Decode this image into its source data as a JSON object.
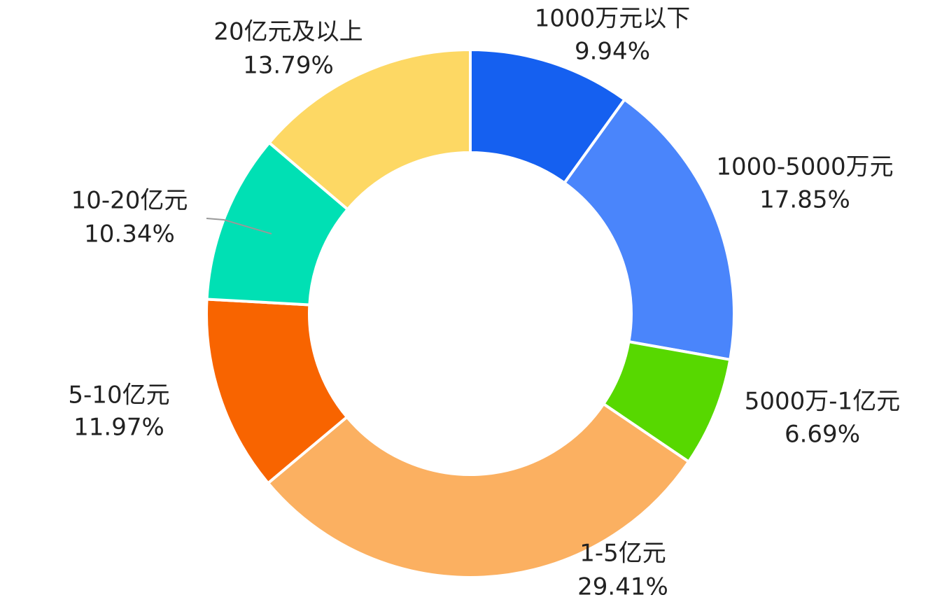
{
  "chart_data": {
    "type": "pie",
    "donut": true,
    "categories": [
      "1000万元以下",
      "1000-5000万元",
      "5000万-1亿元",
      "1-5亿元",
      "5-10亿元",
      "10-20亿元",
      "20亿元及以上"
    ],
    "values": [
      9.94,
      17.85,
      6.69,
      29.41,
      11.97,
      10.34,
      13.79
    ],
    "value_labels": [
      "9.94%",
      "17.85%",
      "6.69%",
      "29.41%",
      "11.97%",
      "10.34%",
      "13.79%"
    ],
    "colors": [
      "#1560f0",
      "#4a85fb",
      "#57d800",
      "#fbb061",
      "#f86400",
      "#00e0b4",
      "#fdd864"
    ]
  }
}
